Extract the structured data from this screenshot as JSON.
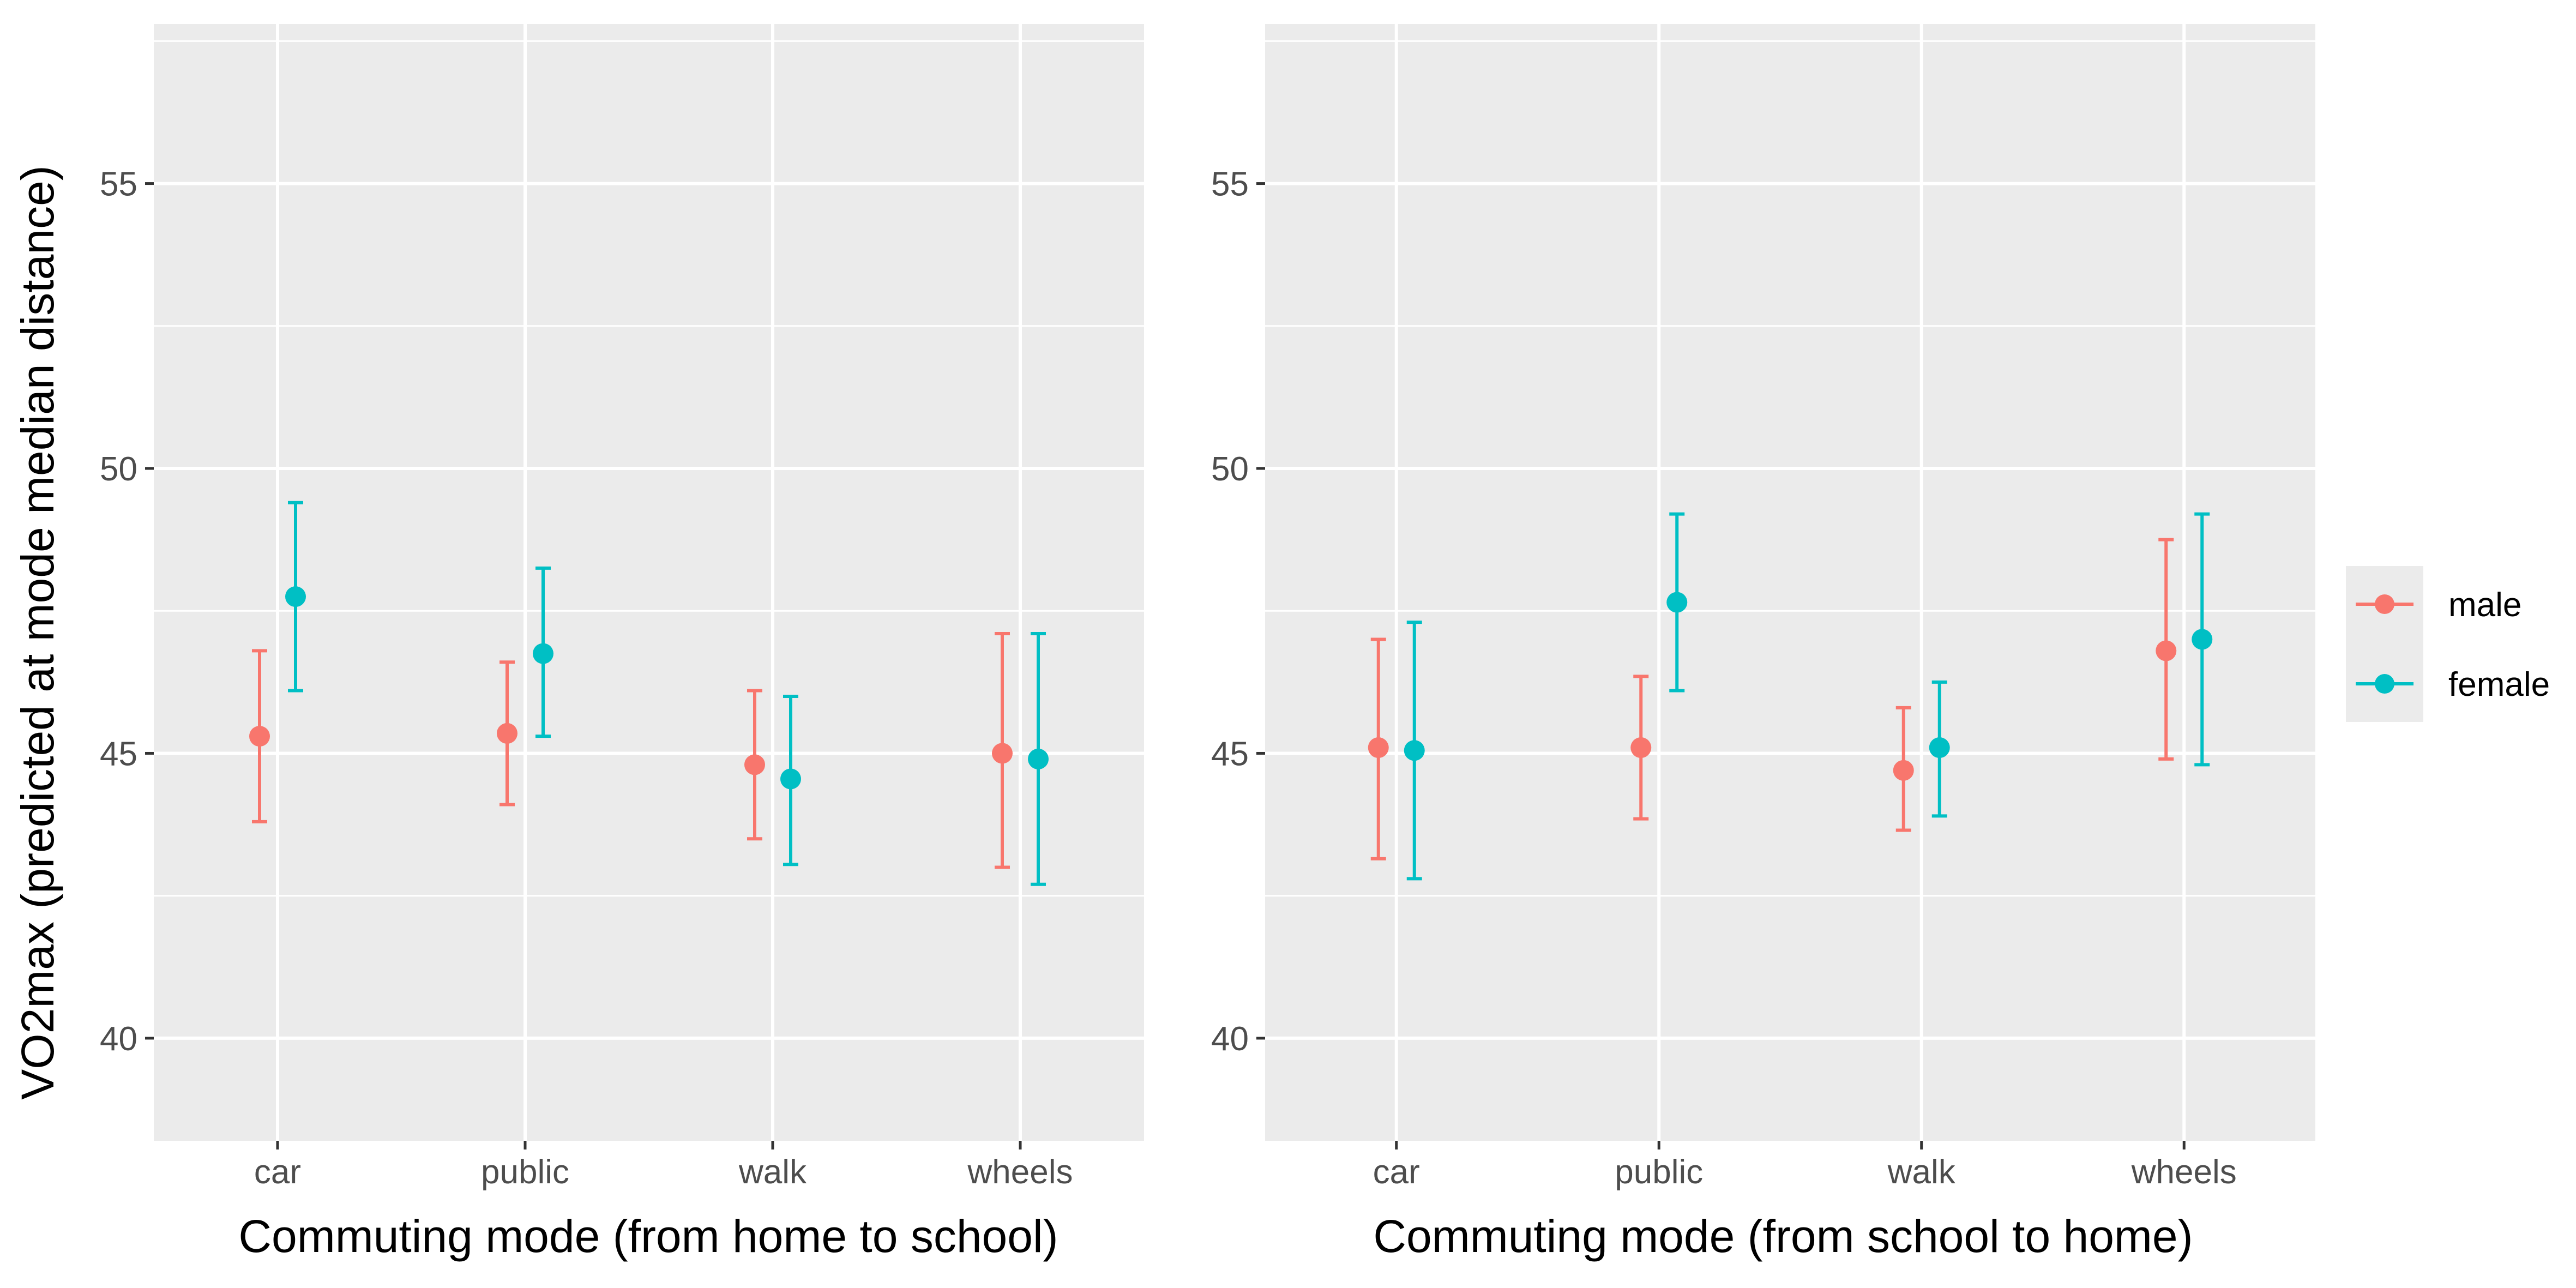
{
  "chart_data": {
    "type": "scatter",
    "ylabel": "VO2max (predicted at mode median distance)",
    "ylim": [
      38.2,
      57.8
    ],
    "yticks": [
      40,
      45,
      50,
      55
    ],
    "grid": true,
    "legend": {
      "placement": "right",
      "entries": [
        {
          "name": "male",
          "color": "#F8766D"
        },
        {
          "name": "female",
          "color": "#00BFC4"
        }
      ]
    },
    "panels": [
      {
        "xlabel": "Commuting mode (from home to school)",
        "categories": [
          "car",
          "public",
          "walk",
          "wheels"
        ],
        "series": [
          {
            "name": "male",
            "color": "#F8766D",
            "values": [
              45.3,
              45.35,
              44.8,
              45.0
            ],
            "lower": [
              43.8,
              44.1,
              43.5,
              43.0
            ],
            "upper": [
              46.8,
              46.6,
              46.1,
              47.1
            ]
          },
          {
            "name": "female",
            "color": "#00BFC4",
            "values": [
              47.75,
              46.75,
              44.55,
              44.9
            ],
            "lower": [
              46.1,
              45.3,
              43.05,
              42.7
            ],
            "upper": [
              49.4,
              48.25,
              46.0,
              47.1
            ]
          }
        ]
      },
      {
        "xlabel": "Commuting mode (from school to home)",
        "categories": [
          "car",
          "public",
          "walk",
          "wheels"
        ],
        "series": [
          {
            "name": "male",
            "color": "#F8766D",
            "values": [
              45.1,
              45.1,
              44.7,
              46.8
            ],
            "lower": [
              43.15,
              43.85,
              43.65,
              44.9
            ],
            "upper": [
              47.0,
              46.35,
              45.8,
              48.75
            ]
          },
          {
            "name": "female",
            "color": "#00BFC4",
            "values": [
              45.05,
              47.65,
              45.1,
              47.0
            ],
            "lower": [
              42.8,
              46.1,
              43.9,
              44.8
            ],
            "upper": [
              47.3,
              49.2,
              46.25,
              49.2
            ]
          }
        ]
      }
    ]
  }
}
